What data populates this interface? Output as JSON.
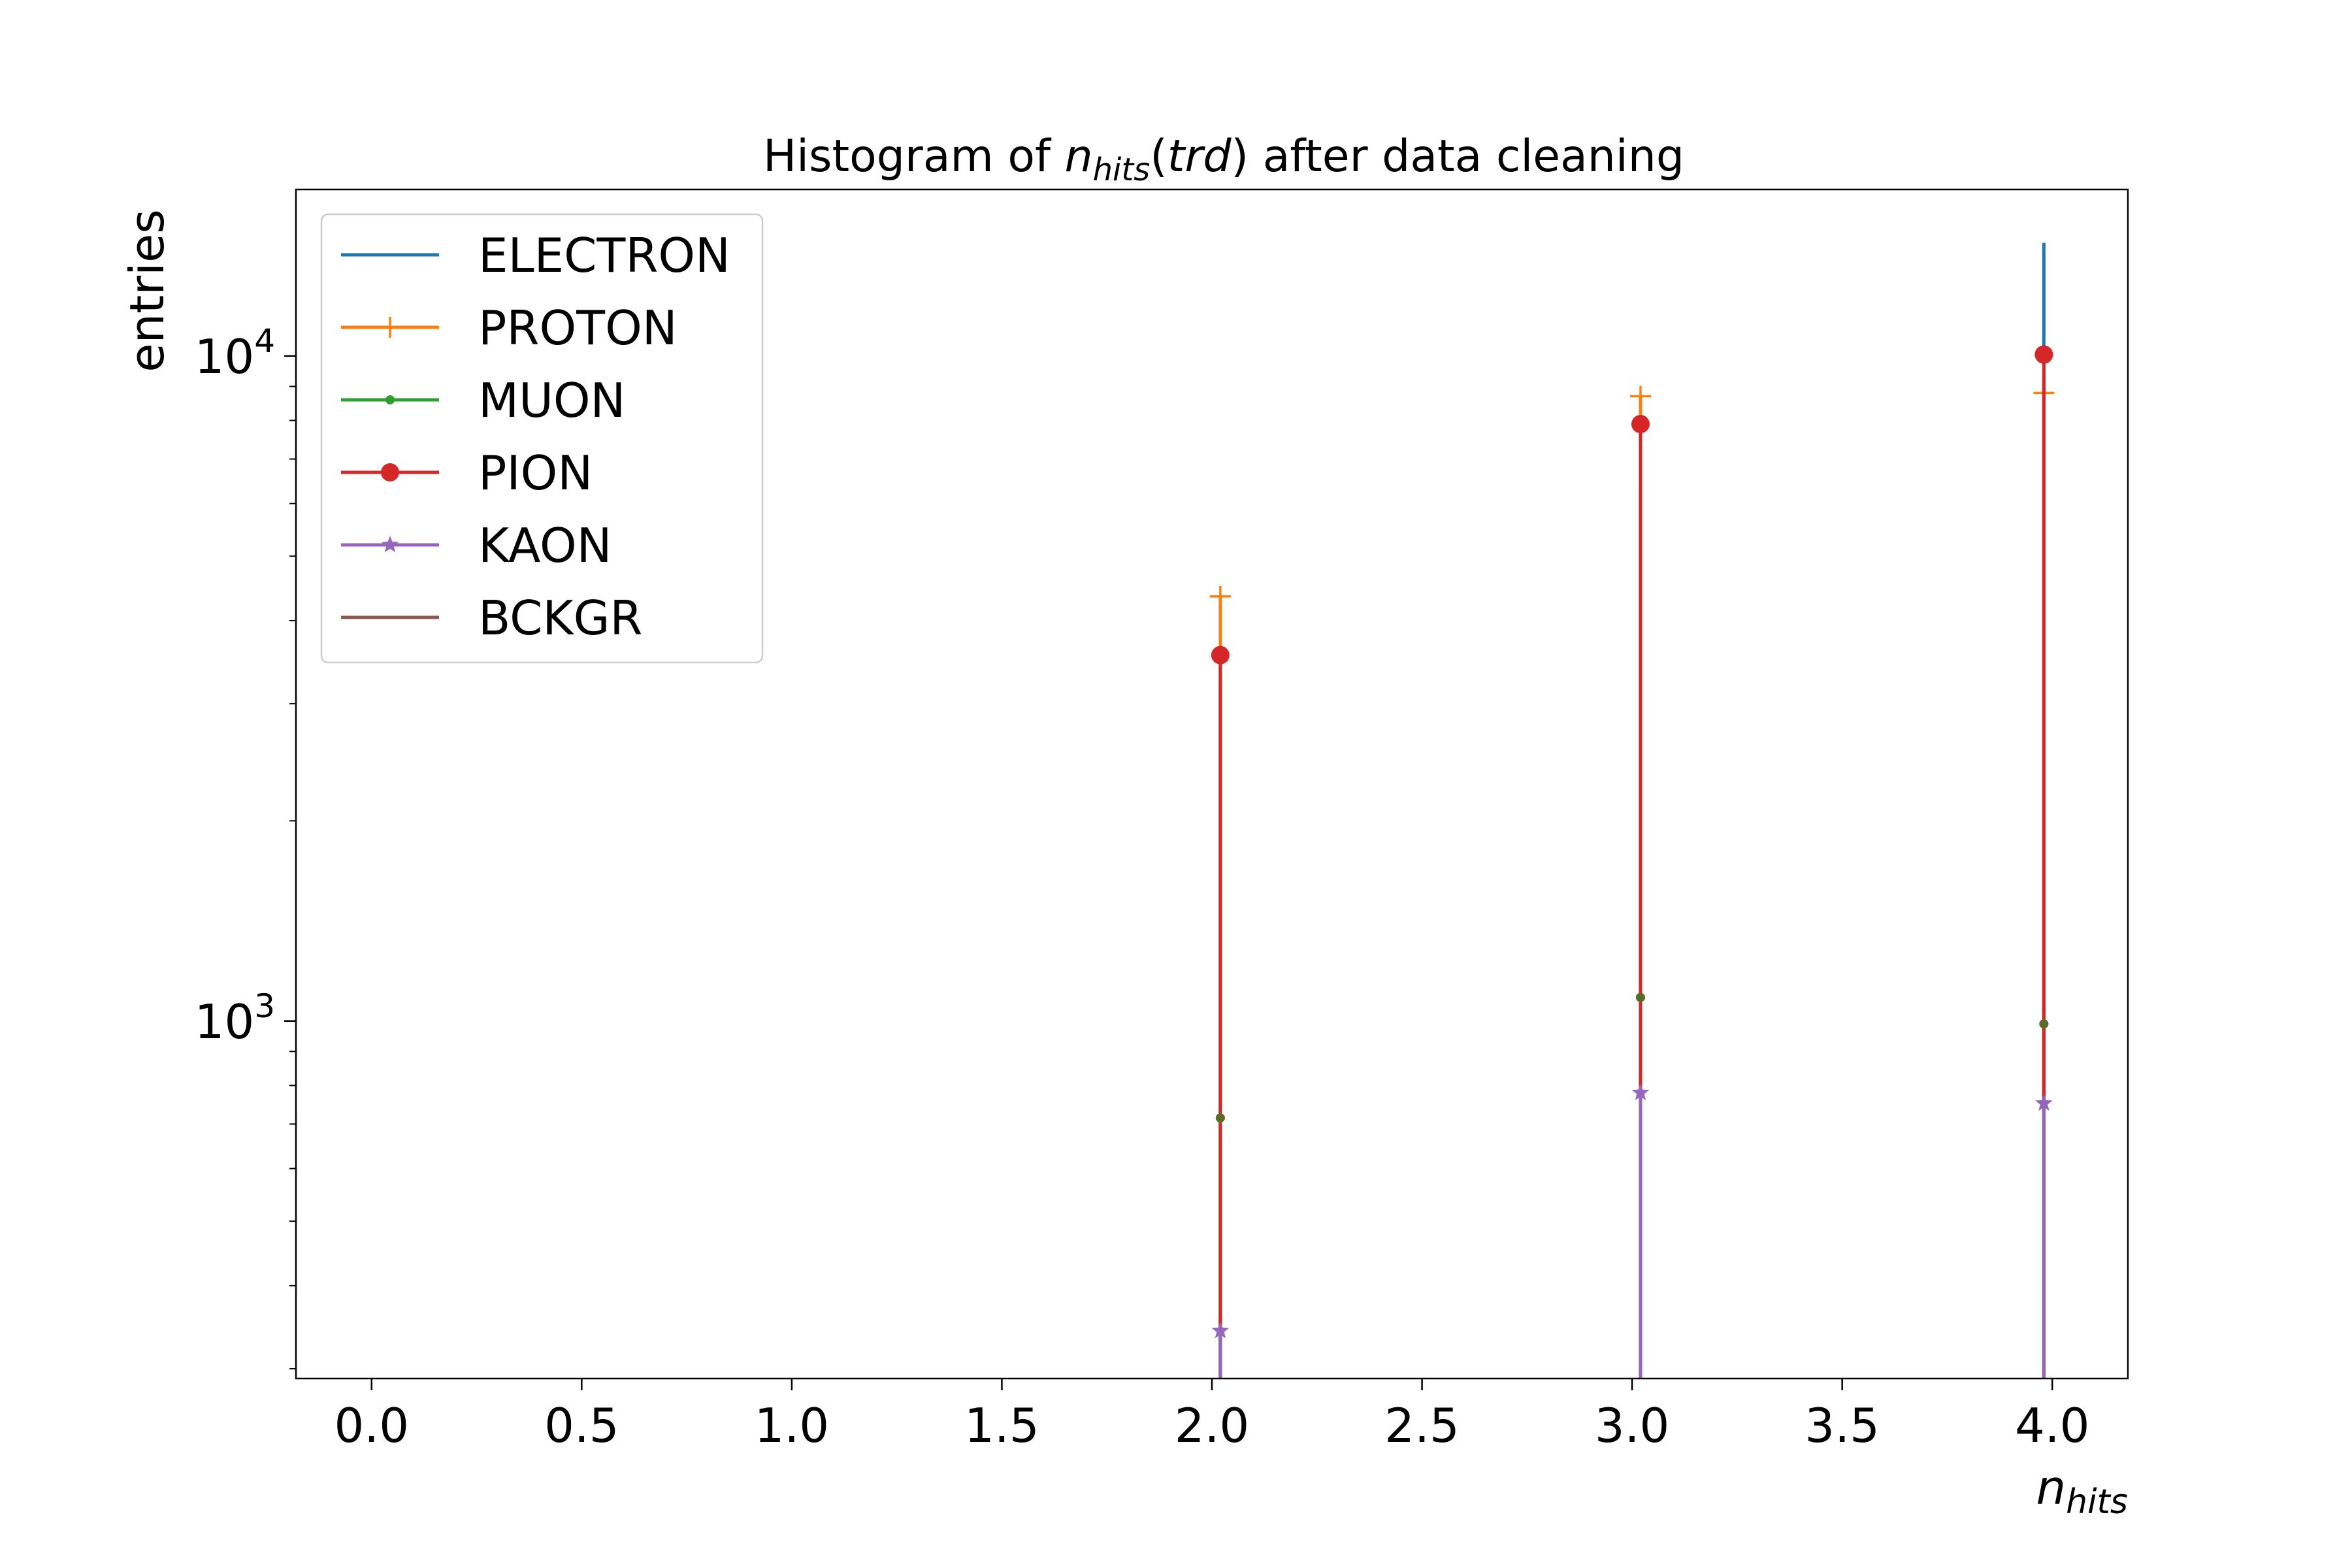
{
  "chart_data": {
    "type": "line",
    "title": {
      "prefix": "Histogram of ",
      "var": "n",
      "sub": "hits",
      "arg": "(",
      "arg_var": "trd",
      "arg_close": ")",
      "suffix": " after data cleaning"
    },
    "xlabel": {
      "var": "n",
      "sub": "hits"
    },
    "ylabel": "entries",
    "xlim": [
      -0.18,
      4.18
    ],
    "ylim": [
      290,
      17800
    ],
    "yscale": "log",
    "xticks": [
      "0.0",
      "0.5",
      "1.0",
      "1.5",
      "2.0",
      "2.5",
      "3.0",
      "3.5",
      "4.0"
    ],
    "yticks": [
      {
        "value": 1000,
        "base": "10",
        "exp": "3"
      },
      {
        "value": 10000,
        "base": "10",
        "exp": "4"
      }
    ],
    "legend_position": "top-left",
    "series": [
      {
        "name": "ELECTRON",
        "color": "#1f77b4",
        "marker": "none",
        "x": [
          2.02,
          3.02,
          3.98
        ],
        "y": [
          3200,
          6400,
          14800
        ]
      },
      {
        "name": "PROTON",
        "color": "#ff7f0e",
        "marker": "plus",
        "x": [
          2.02,
          3.02,
          3.98
        ],
        "y": [
          4350,
          8700,
          8800
        ]
      },
      {
        "name": "MUON",
        "color": "#2ca02c",
        "marker": "point",
        "x": [
          2.02,
          3.02,
          3.98
        ],
        "y": [
          715,
          1085,
          990
        ]
      },
      {
        "name": "PION",
        "color": "#d62728",
        "marker": "circle",
        "x": [
          2.02,
          3.02,
          3.98
        ],
        "y": [
          3550,
          7900,
          10050
        ]
      },
      {
        "name": "KAON",
        "color": "#9467bd",
        "marker": "star",
        "x": [
          2.02,
          3.02,
          3.98
        ],
        "y": [
          342,
          780,
          752
        ]
      },
      {
        "name": "BCKGR",
        "color": "#8c564b",
        "marker": "none",
        "x": [],
        "y": []
      }
    ]
  }
}
